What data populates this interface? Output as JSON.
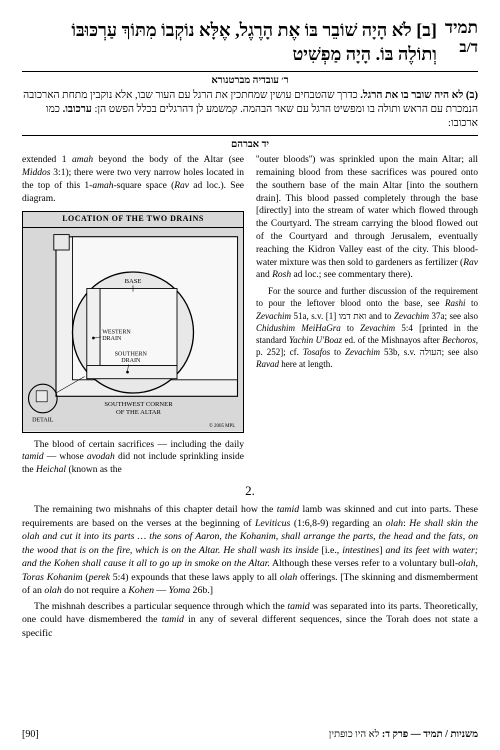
{
  "header": {
    "tractate": "תמיד",
    "daf": "ד/ב",
    "mishnah_hebrew": "[ב] <span class='mishnah-num'>לֹא</span> הָיָה שׁוֹבֵר בּוֹ אֶת הָרֶגֶל, אֶלָּא נוֹקְבוֹ מִתּוֹךְ עַרְכּוּבּוֹ וְתוֹלֶה בּוֹ. הָיָה מַפְשִׁיט"
  },
  "bartenura": {
    "title": "ר׳ עובדיה מברטנורא",
    "text": "<span class='lead'>(ב) לא היה שובר בו את הרגל.</span> כדרך שהטבחים עושין שמחתכין את הרגל עם העור שבו, אלא נוקבין מתחת הארכובה הנמכרת עם הראש ותולה בו ומפשיט הרגל עם שאר הבהמה. קמשמע לן דהרגלים בכלל הפשט הן: <span class='lead'>ערכובו.</span> כמו ארכובו:"
  },
  "yad_avraham_title": "יד אברהם",
  "col_left": {
    "para1": "extended 1 <em>amah</em> beyond the body of the Altar (see <em>Middos</em> 3:1); there were two very narrow holes located in the top of this 1-<em>amah</em>-square space (<em>Rav</em> ad loc.). See diagram.",
    "para2": "The blood of certain sacrifices — including the daily <em>tamid</em> — whose <em>avodah</em> did not include sprinkling inside the <em>Heichal</em> (known as the"
  },
  "diagram": {
    "title": "LOCATION OF THE TWO DRAINS",
    "labels": {
      "base": "BASE",
      "western": "WESTERN\nDRAIN",
      "southern": "SOUTHERN\nDRAIN",
      "corner": "SOUTHWEST CORNER\nOF THE ALTAR",
      "detail": "DETAIL",
      "copyright": "© 2005 MPL"
    },
    "colors": {
      "bg": "#d8d8d8",
      "altar_fill": "#f5f5f5",
      "circle_stroke": "#000000",
      "line": "#000000"
    }
  },
  "col_right": {
    "text": "''outer bloods'') was sprinkled upon the main Altar; all remaining blood from these sacrifices was poured onto the southern base of the main Altar [into the southern drain]. This blood passed completely through the base [directly] into the stream of water which flowed through the Courtyard. The stream carrying the blood flowed out of the Courtyard and through Jerusalem, eventually reaching the Kidron Valley east of the city. This blood-water mixture was then sold to gardeners as fertilizer (<em>Rav</em> and <em>Rosh</em> ad loc.; see commentary there).",
    "text2": "For the source and further discussion of the requirement to pour the leftover blood onto the base, see <em>Rashi</em> to <em>Zevachim</em> 51a, s.v. [1] ואת דמו and to <em>Zevachim</em> 37a; see also <em>Chidushim MeiHaGra</em> to <em>Zevachim</em> 5:4 [printed in the standard <em>Yachin U'Boaz</em> ed. of the Mishnayos after <em>Bechoros</em>, p. 252]; cf. <em>Tosafos</em> to <em>Zevachim</em> 53b, s.v. העולה; see also <em>Ravad</em> here at length."
  },
  "section2": {
    "num": "2.",
    "para1": "The remaining two mishnahs of this chapter detail how the <em>tamid</em> lamb was skinned and cut into parts. These requirements are based on the verses at the beginning of <em>Leviticus</em> (1:6,8-9) regarding an <em>olah</em>: <em>He shall skin the olah and cut it into its parts … the sons of Aaron, the Kohanim, shall arrange the parts, the head and the fats, on the wood that is on the fire, which is on the Altar. He shall wash its inside</em> [i.e., <em>intestines</em>] <em>and its feet with water; and the Kohen shall cause it all to go up in smoke on the Altar.</em> Although these verses refer to a voluntary bull-<em>olah</em>, <em>Toras Kohanim</em> (<em>perek</em> 5:4) expounds that these laws apply to all <em>olah</em> offerings. [The skinning and dismemberment of an <em>olah</em> do not require a <em>Kohen</em> — <em>Yoma</em> 26b.]",
    "para2": "The mishnah describes a particular sequence through which the <em>tamid</em> was separated into its parts. Theoretically, one could have dismembered the <em>tamid</em> in any of several different sequences, since the Torah does not state a specific"
  },
  "footer": {
    "hebrew": "משניות / תמיד — פרק ד: <span style='font-weight:normal'>לא היו כופתין</span>",
    "page": "[90]"
  }
}
